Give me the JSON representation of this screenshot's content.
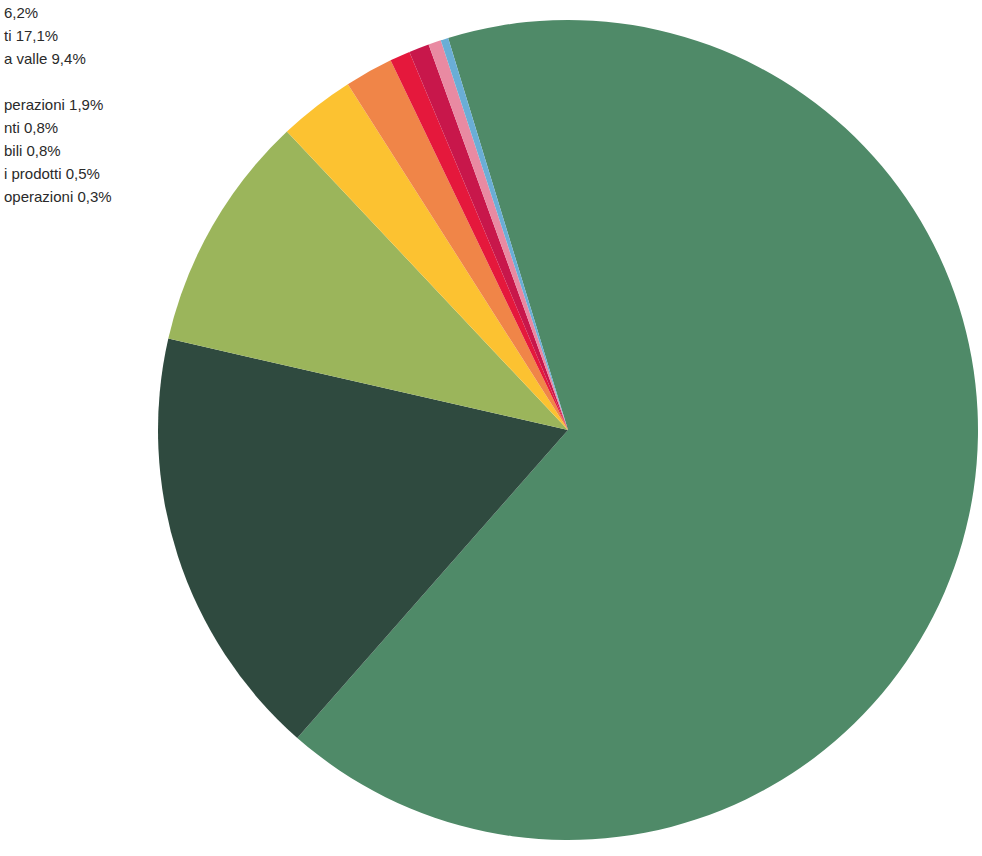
{
  "chart_data": {
    "type": "pie",
    "categories": [
      "6,2%",
      "ti 17,1%",
      "a valle 9,4%",
      null,
      "perazioni 1,9%",
      "nti 0,8%",
      "bili 0,8%",
      "i prodotti 0,5%",
      "operazioni 0,3%"
    ],
    "values": [
      66.2,
      17.1,
      9.4,
      3.0,
      1.9,
      0.8,
      0.8,
      0.5,
      0.3
    ],
    "colors": [
      "#4f8a68",
      "#2f4a3f",
      "#9bb55b",
      "#fcc231",
      "#f08548",
      "#e5183c",
      "#c8174b",
      "#e98aa2",
      "#6aaed6"
    ]
  }
}
